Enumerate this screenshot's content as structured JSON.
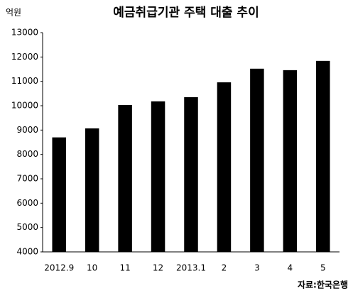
{
  "chart_data": {
    "type": "bar",
    "title": "예금취급기관 주택 대출 추이",
    "y_label": "억원",
    "source": "자료:한국은행",
    "categories": [
      "2012.9",
      "10",
      "11",
      "12",
      "2013.1",
      "2",
      "3",
      "4",
      "5"
    ],
    "values": [
      8700,
      9070,
      10030,
      10180,
      10350,
      10960,
      11520,
      11460,
      11840
    ],
    "color": "#000000",
    "ylim": [
      4000,
      13000
    ],
    "yticks": [
      4000,
      5000,
      6000,
      7000,
      8000,
      9000,
      10000,
      11000,
      12000,
      13000
    ],
    "grid": false
  }
}
